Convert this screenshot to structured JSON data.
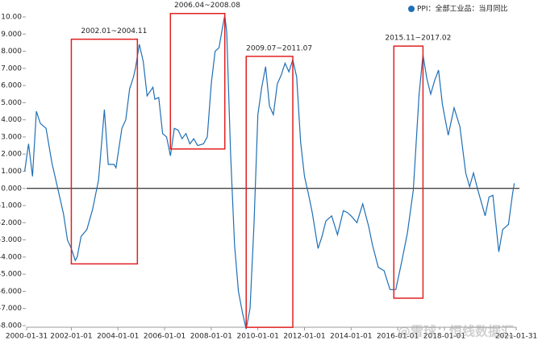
{
  "chart_data": {
    "type": "line",
    "series": [
      {
        "name": "PPI：全部工业品：当月同比",
        "color": "#1f6fb5",
        "x": [
          "2000-01",
          "2000-03",
          "2000-05",
          "2000-07",
          "2000-09",
          "2000-12",
          "2001-03",
          "2001-06",
          "2001-09",
          "2001-11",
          "2002-01",
          "2002-03",
          "2002-04",
          "2002-06",
          "2002-09",
          "2002-12",
          "2003-03",
          "2003-06",
          "2003-08",
          "2003-11",
          "2003-12",
          "2004-03",
          "2004-05",
          "2004-07",
          "2004-09",
          "2004-10",
          "2004-12",
          "2005-02",
          "2005-04",
          "2005-07",
          "2005-08",
          "2005-10",
          "2005-12",
          "2006-02",
          "2006-04",
          "2006-06",
          "2006-08",
          "2006-10",
          "2006-12",
          "2007-02",
          "2007-04",
          "2007-06",
          "2007-09",
          "2007-11",
          "2008-01",
          "2008-03",
          "2008-05",
          "2008-07",
          "2008-08",
          "2008-09",
          "2008-11",
          "2009-01",
          "2009-03",
          "2009-05",
          "2009-07",
          "2009-09",
          "2009-11",
          "2010-01",
          "2010-03",
          "2010-05",
          "2010-07",
          "2010-09",
          "2010-11",
          "2011-01",
          "2011-03",
          "2011-05",
          "2011-07",
          "2011-09",
          "2011-11",
          "2012-01",
          "2012-03",
          "2012-05",
          "2012-08",
          "2012-10",
          "2012-12",
          "2013-03",
          "2013-06",
          "2013-09",
          "2013-11",
          "2014-01",
          "2014-04",
          "2014-07",
          "2014-10",
          "2014-12",
          "2015-03",
          "2015-06",
          "2015-09",
          "2015-12",
          "2016-03",
          "2016-06",
          "2016-09",
          "2016-12",
          "2017-02",
          "2017-04",
          "2017-06",
          "2017-08",
          "2017-10",
          "2017-12",
          "2018-03",
          "2018-06",
          "2018-09",
          "2018-12",
          "2019-02",
          "2019-04",
          "2019-06",
          "2019-08",
          "2019-10",
          "2019-12",
          "2020-02",
          "2020-05",
          "2020-07",
          "2020-10",
          "2020-12",
          "2021-01"
        ],
        "values": [
          1.0,
          2.6,
          0.7,
          4.5,
          3.8,
          3.5,
          1.5,
          0.0,
          -1.5,
          -3.0,
          -3.5,
          -4.2,
          -4.0,
          -2.8,
          -2.4,
          -1.2,
          0.5,
          4.6,
          1.4,
          1.4,
          1.2,
          3.5,
          4.0,
          5.8,
          6.5,
          7.0,
          8.4,
          7.4,
          5.4,
          5.9,
          5.2,
          5.3,
          3.2,
          3.0,
          1.9,
          3.5,
          3.4,
          2.9,
          3.2,
          2.6,
          2.9,
          2.5,
          2.6,
          3.0,
          6.1,
          8.0,
          8.2,
          9.5,
          10.1,
          9.1,
          2.0,
          -3.3,
          -6.0,
          -7.2,
          -8.2,
          -7.0,
          -2.1,
          4.3,
          5.9,
          7.1,
          4.8,
          4.3,
          6.1,
          6.6,
          7.3,
          6.8,
          7.5,
          6.5,
          2.7,
          0.7,
          -0.3,
          -1.4,
          -3.5,
          -2.8,
          -1.9,
          -1.6,
          -2.7,
          -1.3,
          -1.4,
          -1.6,
          -2.0,
          -0.9,
          -2.2,
          -3.3,
          -4.6,
          -4.8,
          -5.9,
          -5.9,
          -4.3,
          -2.6,
          -0.1,
          5.5,
          7.8,
          6.4,
          5.5,
          6.3,
          6.9,
          4.9,
          3.1,
          4.7,
          3.6,
          0.9,
          0.1,
          0.9,
          0.0,
          -0.8,
          -1.6,
          -0.5,
          -0.4,
          -3.7,
          -2.4,
          -2.1,
          -0.4,
          0.3
        ]
      }
    ],
    "xlim": [
      "2000-01-31",
      "2021-01-31"
    ],
    "xticks": [
      "2000-01-31",
      "2002-01-01",
      "2004-01-01",
      "2006-01-01",
      "2008-01-01",
      "2010-01-01",
      "2012-01-01",
      "2014-01-01",
      "2016-01-01",
      "2018-01-01",
      "2021-01-31"
    ],
    "ylim": [
      -8,
      10
    ],
    "yticks": [
      {
        "value": 10,
        "label": "10.00"
      },
      {
        "value": 9,
        "label": "9.000"
      },
      {
        "value": 8,
        "label": "8.000"
      },
      {
        "value": 7,
        "label": "7.000"
      },
      {
        "value": 6,
        "label": "6.000"
      },
      {
        "value": 5,
        "label": "5.000"
      },
      {
        "value": 4,
        "label": "4.000"
      },
      {
        "value": 3,
        "label": "3.000"
      },
      {
        "value": 2,
        "label": "2.000"
      },
      {
        "value": 1,
        "label": "1.000"
      },
      {
        "value": 0,
        "label": "0.000"
      },
      {
        "value": -1,
        "label": "-1.000"
      },
      {
        "value": -2,
        "label": "-2.000"
      },
      {
        "value": -3,
        "label": "-3.000"
      },
      {
        "value": -4,
        "label": "-4.000"
      },
      {
        "value": -5,
        "label": "-5.000"
      },
      {
        "value": -6,
        "label": "-6.000"
      },
      {
        "value": -7,
        "label": "-7.000"
      },
      {
        "value": -8,
        "label": "-8.000"
      }
    ],
    "grid": false,
    "legend": "top-right",
    "annotations": [
      {
        "text": "2002.01~2004.11",
        "x": [
          "2002-01",
          "2004-11"
        ],
        "y": [
          -4.4,
          8.7
        ]
      },
      {
        "text": "2006.04~2008.08",
        "x": [
          "2006-04",
          "2008-08"
        ],
        "y": [
          2.3,
          10.2
        ]
      },
      {
        "text": "2009.07~2011.07",
        "x": [
          "2009-07",
          "2011-07"
        ],
        "y": [
          -8.1,
          7.7
        ]
      },
      {
        "text": "2015.11~2017.02",
        "x": [
          "2015-11",
          "2017-02"
        ],
        "y": [
          -6.4,
          8.3
        ]
      }
    ],
    "watermark": "@雪球：恒线数据汇"
  }
}
